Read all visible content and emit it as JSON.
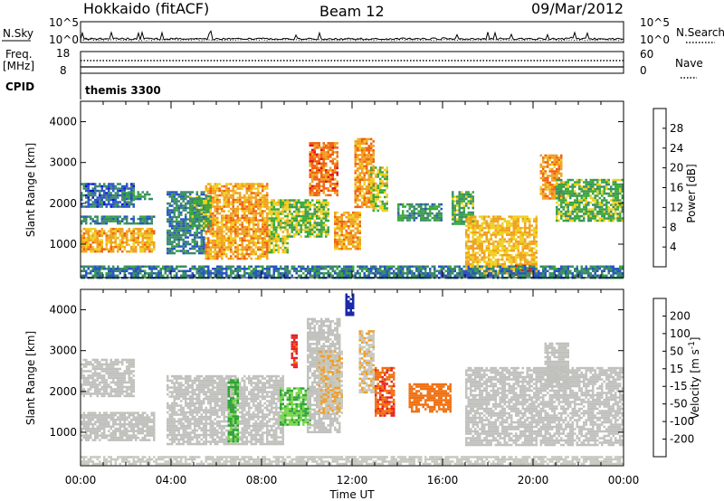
{
  "header": {
    "station": "Hokkaido (fitACF)",
    "beam": "Beam 12",
    "date": "09/Mar/2012"
  },
  "summary_panel": {
    "nsky_label": "N.Sky",
    "nsearch_label": "N.Search",
    "noise_left_ticks": [
      "10^5",
      "10^0"
    ],
    "noise_right_ticks": [
      "10^5",
      "10^0"
    ],
    "freq_label": "Freq.",
    "freq_unit": "[MHz]",
    "freq_ticks": [
      "18",
      "8"
    ],
    "nave_label": "Nave",
    "nave_ticks": [
      "60",
      "0"
    ],
    "cpid_label": "CPID",
    "cpid_value": "themis 3300"
  },
  "colors": {
    "power_scale": [
      "#1010d8",
      "#2a54c6",
      "#3b8b6a",
      "#3aa83a",
      "#f0d020",
      "#f0a020",
      "#f06010",
      "#e01010"
    ],
    "velocity_scale": [
      "#1a2aa8",
      "#2840d0",
      "#2fa23a",
      "#78d848",
      "#c8c8c0",
      "#f0a028",
      "#f07010",
      "#e82020"
    ],
    "ground_scatter": "#c0c0bc"
  },
  "x_ticks": [
    "00:00",
    "04:00",
    "08:00",
    "12:00",
    "16:00",
    "20:00",
    "00:00"
  ],
  "xlabel": "Time UT",
  "chart_data": [
    {
      "type": "heatmap",
      "name_key": "power",
      "ylabel": "Slant Range [km]",
      "y_ticks": [
        "4000",
        "3000",
        "2000",
        "1000"
      ],
      "ylim": [
        180,
        4500
      ],
      "xlim_hours": [
        0,
        24
      ],
      "colorbar_label": "Power [dB]",
      "colorbar_ticks": [
        "28",
        "24",
        "20",
        "16",
        "12",
        "8",
        "4"
      ],
      "colorbar_range": [
        0,
        32
      ],
      "regions": [
        {
          "t": [
            0.0,
            3.3
          ],
          "r": [
            800,
            1400
          ],
          "v": 21
        },
        {
          "t": [
            0.0,
            3.3
          ],
          "r": [
            1500,
            1700
          ],
          "v": 10
        },
        {
          "t": [
            0.0,
            2.4
          ],
          "r": [
            1900,
            2500
          ],
          "v": 7
        },
        {
          "t": [
            1.8,
            3.2
          ],
          "r": [
            2100,
            2300
          ],
          "v": 11
        },
        {
          "t": [
            3.8,
            5.5
          ],
          "r": [
            800,
            2300
          ],
          "v": 9
        },
        {
          "t": [
            5.5,
            8.3
          ],
          "r": [
            650,
            2500
          ],
          "v": 22
        },
        {
          "t": [
            4.8,
            5.8
          ],
          "r": [
            1400,
            2200
          ],
          "v": 14
        },
        {
          "t": [
            8.3,
            9.2
          ],
          "r": [
            800,
            2100
          ],
          "v": 17
        },
        {
          "t": [
            9.2,
            11.0
          ],
          "r": [
            1200,
            2100
          ],
          "v": 15
        },
        {
          "t": [
            10.1,
            11.4
          ],
          "r": [
            2200,
            3500
          ],
          "v": 25
        },
        {
          "t": [
            11.2,
            12.3
          ],
          "r": [
            900,
            1800
          ],
          "v": 22
        },
        {
          "t": [
            12.1,
            13.0
          ],
          "r": [
            1900,
            3600
          ],
          "v": 23
        },
        {
          "t": [
            12.8,
            13.6
          ],
          "r": [
            1800,
            2900
          ],
          "v": 17
        },
        {
          "t": [
            14.0,
            16.0
          ],
          "r": [
            1600,
            2000
          ],
          "v": 11
        },
        {
          "t": [
            16.4,
            17.4
          ],
          "r": [
            1500,
            2300
          ],
          "v": 13
        },
        {
          "t": [
            17.0,
            20.2
          ],
          "r": [
            300,
            1700
          ],
          "v": 20
        },
        {
          "t": [
            19.2,
            19.9
          ],
          "r": [
            250,
            500
          ],
          "v": 28
        },
        {
          "t": [
            20.3,
            21.3
          ],
          "r": [
            2100,
            3200
          ],
          "v": 23
        },
        {
          "t": [
            21.0,
            24.0
          ],
          "r": [
            1600,
            2600
          ],
          "v": 14
        },
        {
          "t": [
            0.0,
            24.0
          ],
          "r": [
            200,
            480
          ],
          "v": 9
        }
      ]
    },
    {
      "type": "heatmap",
      "name_key": "velocity",
      "ylabel": "Slant Range [km]",
      "y_ticks": [
        "4000",
        "3000",
        "2000",
        "1000"
      ],
      "ylim": [
        180,
        4500
      ],
      "xlim_hours": [
        0,
        24
      ],
      "colorbar_label": "Velocity [m s^-1]",
      "colorbar_ticks": [
        "200",
        "100",
        "50",
        "15",
        "-15",
        "-50",
        "-100",
        "-200"
      ],
      "colorbar_range": [
        -250,
        250
      ],
      "regions": [
        {
          "t": [
            0.0,
            3.3
          ],
          "r": [
            800,
            1500
          ],
          "v": 0
        },
        {
          "t": [
            0.0,
            2.4
          ],
          "r": [
            1900,
            2800
          ],
          "v": 0
        },
        {
          "t": [
            3.8,
            9.0
          ],
          "r": [
            700,
            2400
          ],
          "v": 0
        },
        {
          "t": [
            6.5,
            7.0
          ],
          "r": [
            800,
            2300
          ],
          "v": -70
        },
        {
          "t": [
            8.8,
            10.2
          ],
          "r": [
            1200,
            2100
          ],
          "v": -60
        },
        {
          "t": [
            10.0,
            11.5
          ],
          "r": [
            1000,
            3800
          ],
          "v": 0
        },
        {
          "t": [
            10.5,
            11.6
          ],
          "r": [
            1500,
            3000
          ],
          "v": 60
        },
        {
          "t": [
            12.3,
            13.0
          ],
          "r": [
            2000,
            3500
          ],
          "v": 60
        },
        {
          "t": [
            13.0,
            13.8
          ],
          "r": [
            1400,
            2600
          ],
          "v": 180
        },
        {
          "t": [
            14.5,
            16.4
          ],
          "r": [
            1500,
            2200
          ],
          "v": 160
        },
        {
          "t": [
            17.0,
            24.0
          ],
          "r": [
            700,
            2600
          ],
          "v": 0
        },
        {
          "t": [
            20.5,
            21.6
          ],
          "r": [
            2100,
            3200
          ],
          "v": 0
        },
        {
          "t": [
            9.3,
            9.6
          ],
          "r": [
            2600,
            3400
          ],
          "v": 200
        },
        {
          "t": [
            11.7,
            12.1
          ],
          "r": [
            3900,
            4400
          ],
          "v": -220
        },
        {
          "t": [
            0.0,
            24.0
          ],
          "r": [
            200,
            420
          ],
          "v": 30
        }
      ]
    }
  ]
}
